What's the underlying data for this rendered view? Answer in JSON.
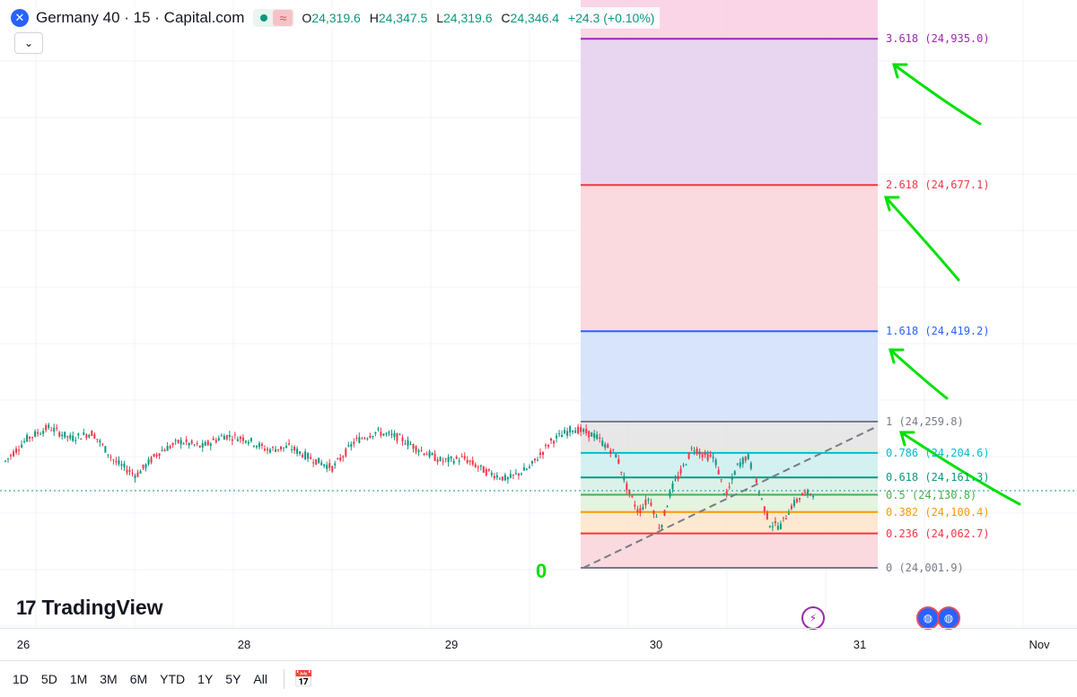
{
  "header": {
    "symbol": "Germany 40 · 15 · Capital.com",
    "logo_icon": "x-cross-icon",
    "open_label": "O",
    "open": "24,319.6",
    "high_label": "H",
    "high": "24,347.5",
    "low_label": "L",
    "low": "24,319.6",
    "close_label": "C",
    "close": "24,346.4",
    "change": "+24.3 (+0.10%)",
    "approx_symbol": "≈",
    "collapse_icon": "chevron-down-icon"
  },
  "brand": {
    "name": "TradingView",
    "mark": "17"
  },
  "time_axis": {
    "ticks": [
      "26",
      "28",
      "29",
      "30",
      "31",
      "Nov"
    ]
  },
  "toolbar": {
    "ranges": [
      "1D",
      "5D",
      "1M",
      "3M",
      "6M",
      "YTD",
      "1Y",
      "5Y",
      "All"
    ],
    "calendar_icon": "calendar-range-icon"
  },
  "events": {
    "lightning_icon": "lightning-icon",
    "economic_icon": "globe-icon"
  },
  "annotation": {
    "text": "0"
  },
  "colors": {
    "up": "#089981",
    "down": "#f23645",
    "grid": "#f0f3fa",
    "annotation": "#00e000"
  },
  "chart_data": {
    "type": "candlestick",
    "symbol": "Germany 40",
    "interval": "15",
    "fib_levels": [
      {
        "level": "3.618",
        "price": "24,935.0",
        "label": "3.618 (24,935.0)",
        "color": "#9c27b0",
        "fill": "#f8d0e4"
      },
      {
        "level": "2.618",
        "price": "24,677.1",
        "label": "2.618 (24,677.1)",
        "color": "#f23645",
        "fill": "#e6d2f0"
      },
      {
        "level": "1.618",
        "price": "24,419.2",
        "label": "1.618 (24,419.2)",
        "color": "#2962ff",
        "fill": "#f9d6da"
      },
      {
        "level": "1",
        "price": "24,259.8",
        "label": "1 (24,259.8)",
        "color": "#787b86",
        "fill": "#d4e1fb"
      },
      {
        "level": "0.786",
        "price": "24,204.6",
        "label": "0.786 (24,204.6)",
        "color": "#00bcd4",
        "fill": "#e4e4e4"
      },
      {
        "level": "0.618",
        "price": "24,161.3",
        "label": "0.618 (24,161.3)",
        "color": "#089981",
        "fill": "#cfeff1"
      },
      {
        "level": "0.5",
        "price": "24,130.8",
        "label": "0.5 (24,130.8)",
        "color": "#4caf50",
        "fill": "#d8f0e6"
      },
      {
        "level": "0.382",
        "price": "24,100.4",
        "label": "0.382 (24,100.4)",
        "color": "#ff9800",
        "fill": "#e2f2de"
      },
      {
        "level": "0.236",
        "price": "24,062.7",
        "label": "0.236 (24,062.7)",
        "color": "#f23645",
        "fill": "#fde7cc"
      },
      {
        "level": "0",
        "price": "24,001.9",
        "label": "0 (24,001.9)",
        "color": "#787b86",
        "fill": "#f9d6da"
      }
    ],
    "price_path": [
      [
        0,
        24190
      ],
      [
        0.02,
        24230
      ],
      [
        0.04,
        24250
      ],
      [
        0.06,
        24230
      ],
      [
        0.08,
        24240
      ],
      [
        0.1,
        24190
      ],
      [
        0.12,
        24165
      ],
      [
        0.14,
        24205
      ],
      [
        0.16,
        24225
      ],
      [
        0.18,
        24215
      ],
      [
        0.2,
        24235
      ],
      [
        0.22,
        24230
      ],
      [
        0.24,
        24210
      ],
      [
        0.26,
        24215
      ],
      [
        0.28,
        24195
      ],
      [
        0.3,
        24178
      ],
      [
        0.32,
        24225
      ],
      [
        0.34,
        24242
      ],
      [
        0.36,
        24232
      ],
      [
        0.38,
        24210
      ],
      [
        0.4,
        24190
      ],
      [
        0.42,
        24195
      ],
      [
        0.44,
        24172
      ],
      [
        0.46,
        24158
      ],
      [
        0.48,
        24178
      ],
      [
        0.5,
        24225
      ],
      [
        0.52,
        24248
      ],
      [
        0.54,
        24235
      ],
      [
        0.56,
        24200
      ],
      [
        0.57,
        24140
      ],
      [
        0.58,
        24100
      ],
      [
        0.59,
        24125
      ],
      [
        0.6,
        24070
      ],
      [
        0.61,
        24140
      ],
      [
        0.62,
        24175
      ],
      [
        0.63,
        24215
      ],
      [
        0.64,
        24200
      ],
      [
        0.65,
        24195
      ],
      [
        0.66,
        24125
      ],
      [
        0.67,
        24180
      ],
      [
        0.68,
        24200
      ],
      [
        0.69,
        24140
      ],
      [
        0.7,
        24080
      ],
      [
        0.71,
        24075
      ],
      [
        0.72,
        24110
      ],
      [
        0.73,
        24130
      ],
      [
        0.74,
        24135
      ]
    ]
  }
}
